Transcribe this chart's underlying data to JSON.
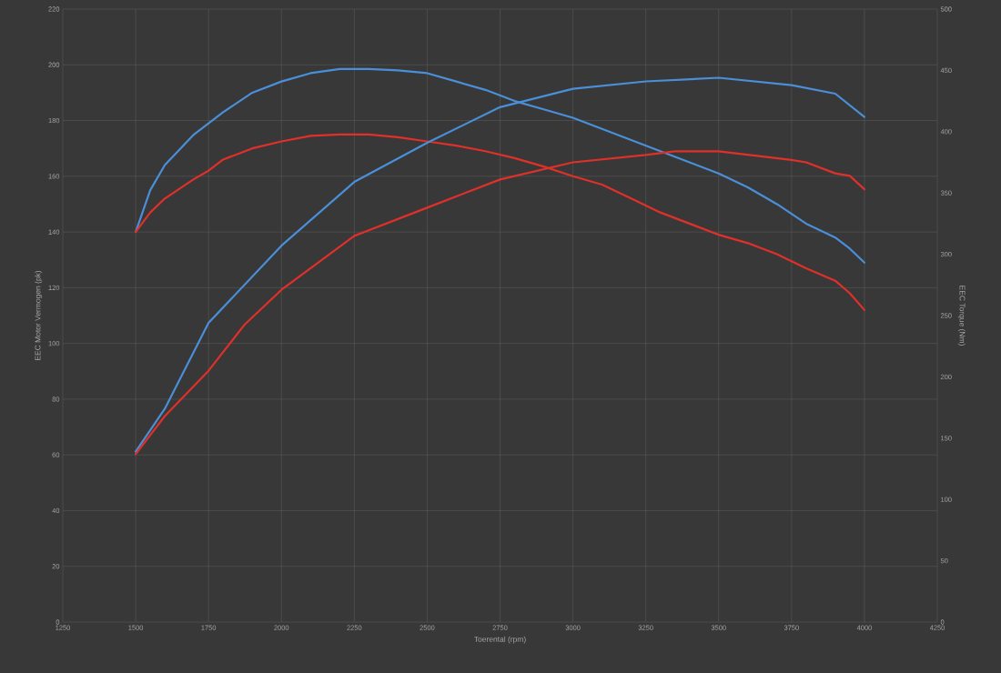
{
  "chart_data": {
    "type": "line",
    "xlabel": "Toerental (rpm)",
    "ylabel": "EEC Motor Vermogen (pk)",
    "y2label": "EEC Torque (Nm)",
    "xlim": [
      1250,
      4250
    ],
    "xticks": [
      1250,
      1500,
      1750,
      2000,
      2250,
      2500,
      2750,
      3000,
      3250,
      3500,
      3750,
      4000,
      4250
    ],
    "ylim": [
      0,
      220
    ],
    "yticks": [
      0,
      20,
      40,
      60,
      80,
      100,
      120,
      140,
      160,
      180,
      200,
      220
    ],
    "y2lim": [
      0,
      500
    ],
    "y2ticks": [
      0,
      50,
      100,
      150,
      200,
      250,
      300,
      350,
      400,
      450,
      500
    ],
    "grid": true,
    "series": [
      {
        "color": "#4a8fd8",
        "x": [
          1500,
          1550,
          1600,
          1700,
          1800,
          1900,
          2000,
          2100,
          2200,
          2300,
          2400,
          2500,
          2600,
          2700,
          2800,
          2900,
          3000,
          3100,
          3200,
          3300,
          3400,
          3500,
          3600,
          3700,
          3800,
          3900,
          3950,
          4000
        ],
        "values": [
          140,
          155,
          164,
          175,
          183,
          190,
          194,
          197,
          198.5,
          198.5,
          198,
          197,
          194,
          191,
          187,
          184,
          181,
          177,
          173,
          169,
          165,
          161,
          156,
          150,
          143,
          138,
          134,
          129
        ]
      },
      {
        "color": "#e0302a",
        "x": [
          1500,
          1550,
          1600,
          1700,
          1750,
          1800,
          1900,
          2000,
          2100,
          2200,
          2300,
          2400,
          2500,
          2600,
          2700,
          2800,
          2900,
          3000,
          3100,
          3200,
          3300,
          3400,
          3500,
          3600,
          3700,
          3800,
          3900,
          3950,
          4000
        ],
        "values": [
          140,
          147,
          152,
          159,
          162,
          166,
          170,
          172.5,
          174.5,
          175,
          175,
          174,
          172.5,
          171,
          169,
          166.5,
          163.5,
          160,
          157,
          152,
          147,
          143,
          139,
          136,
          132,
          127,
          122.5,
          118,
          112
        ]
      },
      {
        "color": "#4a8fd8",
        "axis": "y2",
        "x": [
          1500,
          1600,
          1750,
          2000,
          2250,
          2500,
          2750,
          3000,
          3250,
          3500,
          3750,
          3900,
          4000
        ],
        "values": [
          139,
          174,
          244,
          307,
          359,
          391,
          420,
          435,
          441,
          444,
          438,
          431,
          412
        ]
      },
      {
        "color": "#e0302a",
        "axis": "y2",
        "x": [
          1500,
          1600,
          1750,
          1875,
          2000,
          2250,
          2500,
          2750,
          3000,
          3250,
          3350,
          3500,
          3750,
          3800,
          3900,
          3950,
          4000
        ],
        "values": [
          137,
          168,
          205,
          243,
          271,
          315,
          338,
          361,
          375,
          381,
          384,
          384,
          377,
          375,
          366,
          364,
          353
        ]
      }
    ]
  }
}
